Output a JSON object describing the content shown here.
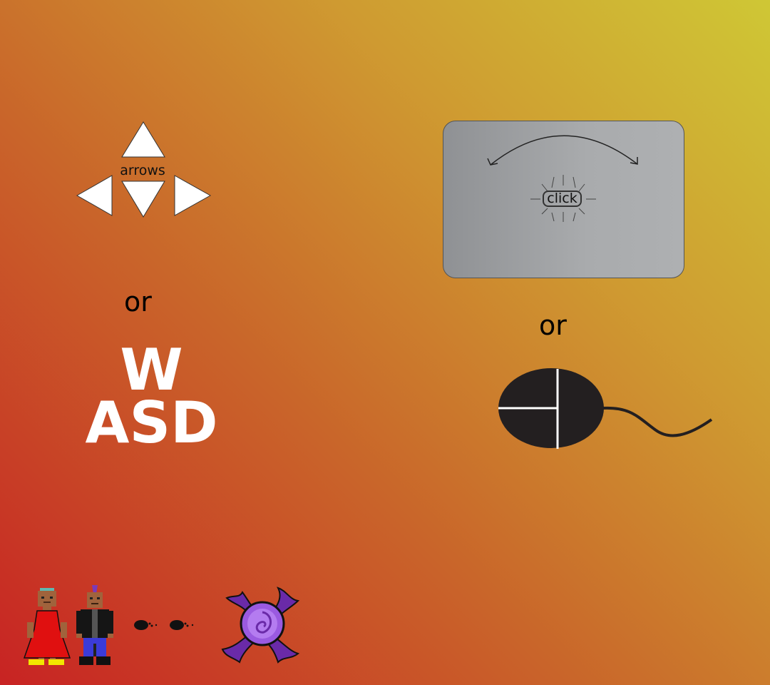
{
  "keyboard": {
    "arrows_label": "arrows",
    "or_label": "or",
    "wasd_top": "W",
    "wasd_bottom": "ASD"
  },
  "pointer": {
    "touchpad_label": "click",
    "or_label": "or"
  },
  "colors": {
    "background_top_right": "#cfc735",
    "background_bottom_left": "#c82323",
    "arrow_fill": "#ffffff",
    "mouse_fill": "#231f20",
    "touchpad_fill": "#a9abad"
  },
  "icons": {
    "arrow_keys": "arrow-keys-icon",
    "touchpad": "touchpad-icon",
    "mouse": "mouse-icon",
    "character_red": "character-red-dress-sprite",
    "character_dark": "character-punk-sprite",
    "footsteps": "footsteps-icon",
    "portal": "purple-portal-sprite"
  }
}
